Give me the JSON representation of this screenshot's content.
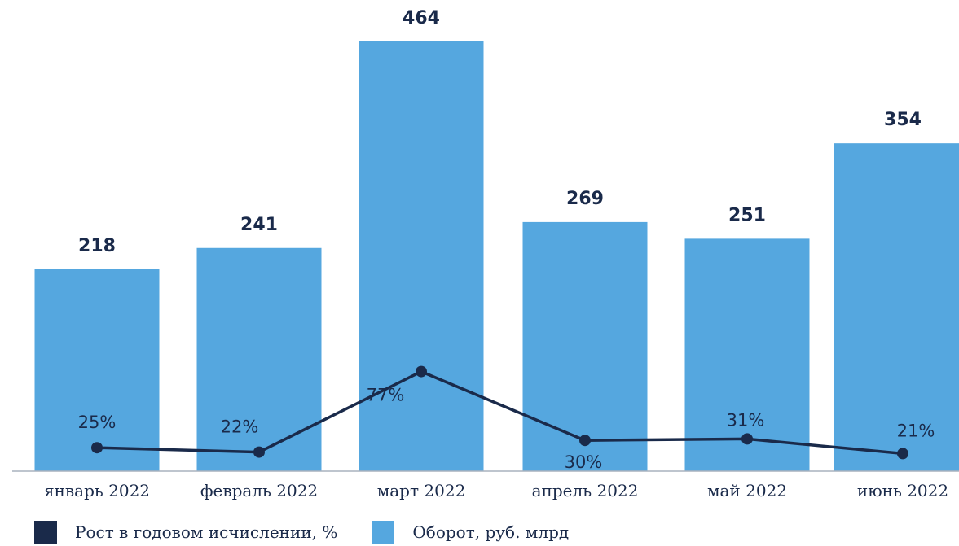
{
  "chart_data": {
    "type": "bar",
    "categories": [
      "январь 2022",
      "февраль 2022",
      "март 2022",
      "апрель 2022",
      "май 2022",
      "июнь 2022"
    ],
    "series": [
      {
        "name": "Оборот, руб. млрд",
        "type": "bar",
        "values": [
          218,
          241,
          464,
          269,
          251,
          354
        ],
        "color": "#55a7df"
      },
      {
        "name": "Рост в годовом исчислении, %",
        "type": "line",
        "values": [
          25,
          22,
          77,
          30,
          31,
          21
        ],
        "value_labels": [
          "25%",
          "22%",
          "77%",
          "30%",
          "31%",
          "21%"
        ],
        "color": "#1a2a4a"
      }
    ],
    "legend_position": "bottom-left",
    "grid": false
  },
  "legend": {
    "growth_label": "Рост в годовом исчислении, %",
    "turnover_label": "Оборот, руб. млрд"
  }
}
